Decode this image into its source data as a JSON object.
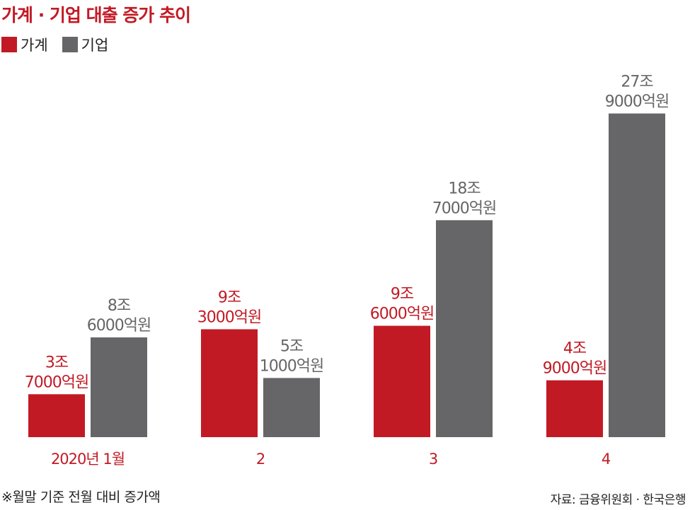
{
  "chart_data": {
    "type": "bar",
    "title": "가계 · 기업 대출 증가 추이",
    "categories": [
      "2020년 1월",
      "2",
      "3",
      "4"
    ],
    "series": [
      {
        "name": "가계",
        "color": "#c21a24",
        "values": [
          3.7,
          9.3,
          9.6,
          4.9
        ],
        "labels": [
          [
            "3조",
            "7000억원"
          ],
          [
            "9조",
            "3000억원"
          ],
          [
            "9조",
            "6000억원"
          ],
          [
            "4조",
            "9000억원"
          ]
        ]
      },
      {
        "name": "기업",
        "color": "#666567",
        "values": [
          8.6,
          5.1,
          18.7,
          27.9
        ],
        "labels": [
          [
            "8조",
            "6000억원"
          ],
          [
            "5조",
            "1000억원"
          ],
          [
            "18조",
            "7000억원"
          ],
          [
            "27조",
            "9000억원"
          ]
        ]
      }
    ],
    "ylim": [
      0,
      30
    ],
    "grid": false,
    "legend_position": "top-left",
    "category_label_color": "#c21a24"
  },
  "footnote": "※월말 기준 전월 대비 증가액",
  "source": "자료: 금융위원회 · 한국은행"
}
